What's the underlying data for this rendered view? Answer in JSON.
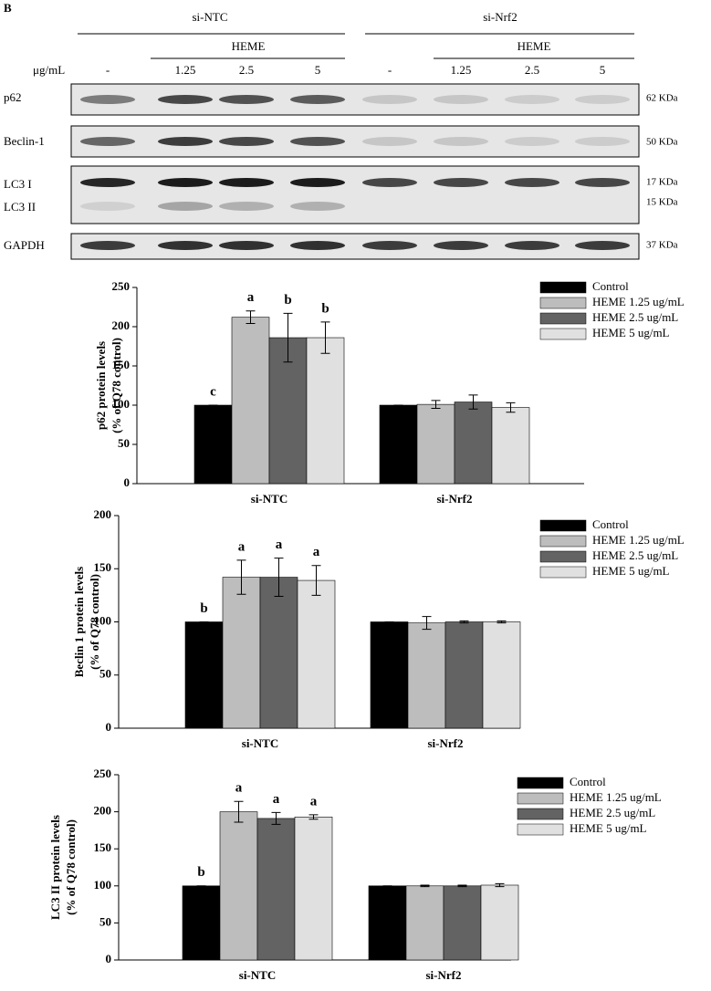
{
  "blot": {
    "panel": "B",
    "groups": [
      "si-NTC",
      "si-Nrf2"
    ],
    "treatment": [
      "HEME",
      "HEME"
    ],
    "unit": "μg/mL",
    "lanes": [
      "-",
      "1.25",
      "2.5",
      "5",
      "-",
      "1.25",
      "2.5",
      "5"
    ],
    "rows": [
      {
        "labels": [
          "p62"
        ],
        "sizes": [
          "62 KDa"
        ]
      },
      {
        "labels": [
          "Beclin-1"
        ],
        "sizes": [
          "50 KDa"
        ]
      },
      {
        "labels": [
          "LC3 I",
          "LC3 II"
        ],
        "sizes": [
          "17 KDa",
          "15 KDa"
        ]
      },
      {
        "labels": [
          "GAPDH"
        ],
        "sizes": [
          "37 KDa"
        ]
      }
    ]
  },
  "chart_data": [
    {
      "type": "bar",
      "ylabel": [
        "p62 protein levels",
        "(% of Q78 control)"
      ],
      "categories": [
        "si-NTC",
        "si-Nrf2"
      ],
      "ylim": [
        0,
        250
      ],
      "yticks": [
        0,
        50,
        100,
        150,
        200,
        250
      ],
      "series": [
        {
          "name": "Control",
          "color": "#000000",
          "values": [
            100,
            100
          ],
          "errors": [
            0,
            0
          ],
          "annotations": [
            "c",
            null
          ]
        },
        {
          "name": "HEME 1.25 ug/mL",
          "color": "#bdbdbd",
          "values": [
            212,
            101
          ],
          "errors": [
            8,
            5
          ],
          "annotations": [
            "a",
            null
          ]
        },
        {
          "name": "HEME 2.5 ug/mL",
          "color": "#636363",
          "values": [
            186,
            104
          ],
          "errors": [
            31,
            9
          ],
          "annotations": [
            "b",
            null
          ]
        },
        {
          "name": "HEME 5 ug/mL",
          "color": "#e0e0e0",
          "values": [
            186,
            97
          ],
          "errors": [
            20,
            6
          ],
          "annotations": [
            "b",
            null
          ]
        }
      ]
    },
    {
      "type": "bar",
      "ylabel": [
        "Beclin 1 protein levels",
        "(% of Q78 control)"
      ],
      "categories": [
        "si-NTC",
        "si-Nrf2"
      ],
      "ylim": [
        0,
        200
      ],
      "yticks": [
        0,
        50,
        100,
        150,
        200
      ],
      "series": [
        {
          "name": "Control",
          "color": "#000000",
          "values": [
            100,
            100
          ],
          "errors": [
            0,
            0
          ],
          "annotations": [
            "b",
            null
          ]
        },
        {
          "name": "HEME 1.25 ug/mL",
          "color": "#bdbdbd",
          "values": [
            142,
            99
          ],
          "errors": [
            16,
            6
          ],
          "annotations": [
            "a",
            null
          ]
        },
        {
          "name": "HEME 2.5 ug/mL",
          "color": "#636363",
          "values": [
            142,
            100
          ],
          "errors": [
            18,
            1
          ],
          "annotations": [
            "a",
            null
          ]
        },
        {
          "name": "HEME 5 ug/mL",
          "color": "#e0e0e0",
          "values": [
            139,
            100
          ],
          "errors": [
            14,
            1
          ],
          "annotations": [
            "a",
            null
          ]
        }
      ]
    },
    {
      "type": "bar",
      "ylabel": [
        "LC3 II protein levels",
        "(% of Q78 control)"
      ],
      "categories": [
        "si-NTC",
        "si-Nrf2"
      ],
      "ylim": [
        0,
        250
      ],
      "yticks": [
        0,
        50,
        100,
        150,
        200,
        250
      ],
      "series": [
        {
          "name": "Control",
          "color": "#000000",
          "values": [
            100,
            100
          ],
          "errors": [
            0,
            0
          ],
          "annotations": [
            "b",
            null
          ]
        },
        {
          "name": "HEME 1.25 ug/mL",
          "color": "#bdbdbd",
          "values": [
            200,
            100
          ],
          "errors": [
            14,
            1
          ],
          "annotations": [
            "a",
            null
          ]
        },
        {
          "name": "HEME 2.5 ug/mL",
          "color": "#636363",
          "values": [
            191,
            100
          ],
          "errors": [
            8,
            1
          ],
          "annotations": [
            "a",
            null
          ]
        },
        {
          "name": "HEME 5 ug/mL",
          "color": "#e0e0e0",
          "values": [
            193,
            101
          ],
          "errors": [
            3,
            2
          ],
          "annotations": [
            "a",
            null
          ]
        }
      ]
    }
  ]
}
